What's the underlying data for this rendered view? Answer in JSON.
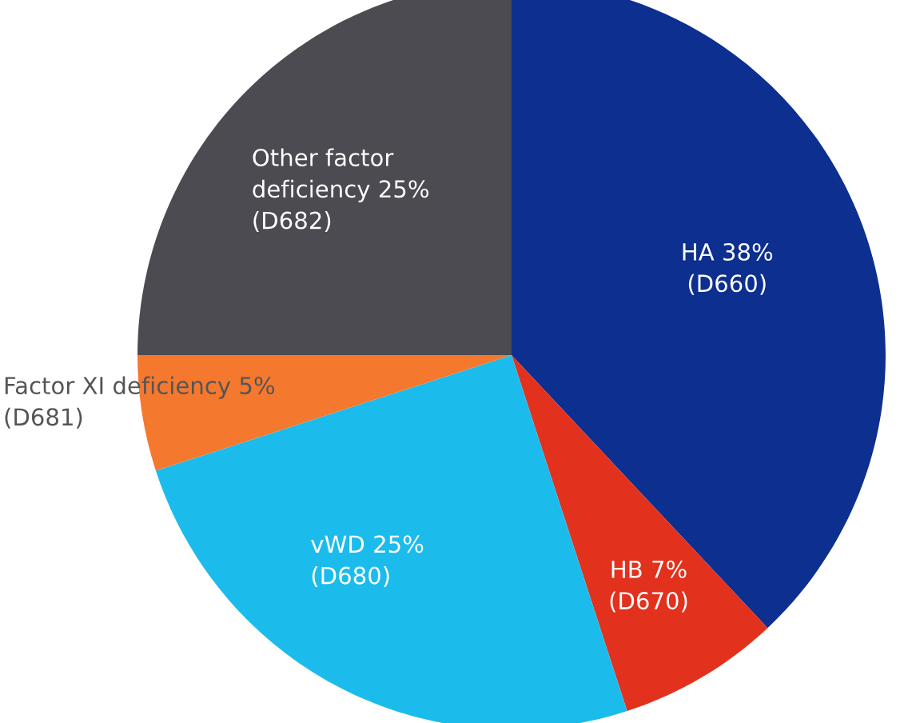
{
  "chart_data": {
    "type": "pie",
    "categories": [
      "HA 38%\n(D660)",
      "HB 7%\n(D670)",
      "vWD 25%\n(D680)",
      "Factor XI deficiency 5%\n(D681)",
      "Other factor\ndeficiency 25%\n(D682)"
    ],
    "values": [
      38,
      7,
      25,
      5,
      25
    ],
    "colors": [
      "#0d2f8f",
      "#e2311d",
      "#1bbcec",
      "#f5782f",
      "#4b4b51"
    ]
  }
}
